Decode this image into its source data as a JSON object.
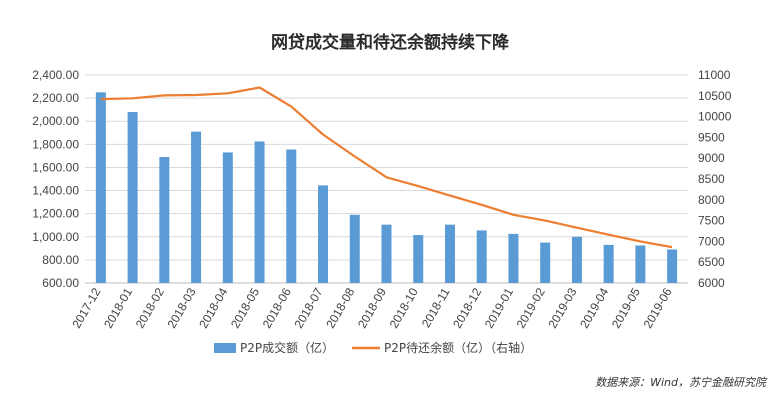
{
  "chart_data": {
    "type": "bar",
    "title": "网贷成交量和待还余额持续下降",
    "categories": [
      "2017-12",
      "2018-01",
      "2018-02",
      "2018-03",
      "2018-04",
      "2018-05",
      "2018-06",
      "2018-07",
      "2018-08",
      "2018-09",
      "2018-10",
      "2018-11",
      "2018-12",
      "2019-01",
      "2019-02",
      "2019-03",
      "2019-04",
      "2019-05",
      "2019-06"
    ],
    "series": [
      {
        "name": "P2P成交额（亿）",
        "type": "bar",
        "axis": "left",
        "color": "#5b9bd5",
        "values": [
          2250,
          2080,
          1690,
          1910,
          1730,
          1825,
          1755,
          1445,
          1190,
          1105,
          1015,
          1105,
          1055,
          1025,
          950,
          1000,
          930,
          925,
          890
        ]
      },
      {
        "name": "P2P待还余额（亿）（右轴）",
        "type": "line",
        "axis": "right",
        "color": "#ed7d31",
        "values": [
          10420,
          10440,
          10510,
          10520,
          10560,
          10700,
          10240,
          9570,
          9040,
          8540,
          8330,
          8100,
          7880,
          7640,
          7500,
          7330,
          7160,
          7000,
          6860
        ]
      }
    ],
    "y_left": {
      "range": [
        600,
        2400
      ],
      "ticks": [
        "600.00",
        "800.00",
        "1,000.00",
        "1,200.00",
        "1,400.00",
        "1,600.00",
        "1,800.00",
        "2,000.00",
        "2,200.00",
        "2,400.00"
      ]
    },
    "y_right": {
      "range": [
        6000,
        11000
      ],
      "ticks": [
        "6000",
        "6500",
        "7000",
        "7500",
        "8000",
        "8500",
        "9000",
        "9500",
        "10000",
        "10500",
        "11000"
      ]
    },
    "grid": true,
    "legend_position": "bottom",
    "source_note": "数据来源：Wind，苏宁金融研究院"
  }
}
